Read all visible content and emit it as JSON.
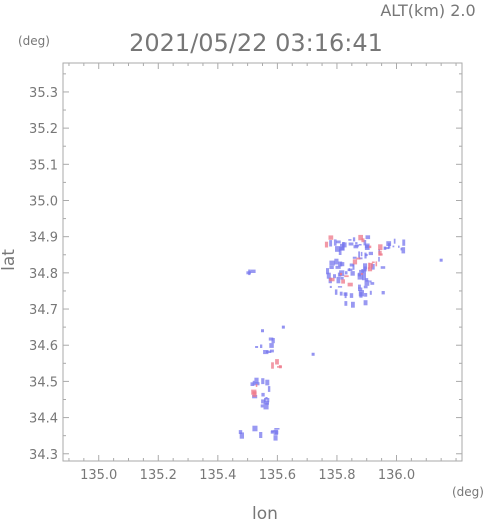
{
  "header": {
    "alt_label": "ALT(km) 2.0",
    "datetime": "2021/05/22 03:16:41"
  },
  "chart_data": {
    "type": "scatter",
    "xlabel": "lon",
    "ylabel": "lat",
    "x_unit": "(deg)",
    "y_unit": "(deg)",
    "xlim": [
      134.88,
      136.22
    ],
    "ylim": [
      34.28,
      35.38
    ],
    "x_ticks": [
      135.0,
      135.2,
      135.4,
      135.6,
      135.8,
      136.0
    ],
    "x_tick_labels": [
      "135.0",
      "135.2",
      "135.4",
      "135.6",
      "135.8",
      "136.0"
    ],
    "y_ticks": [
      34.3,
      34.4,
      34.5,
      34.6,
      34.7,
      34.8,
      34.9,
      35.0,
      35.1,
      35.2,
      35.3
    ],
    "y_tick_labels": [
      "34.3",
      "34.4",
      "34.5",
      "34.6",
      "34.7",
      "34.8",
      "34.9",
      "35.0",
      "35.1",
      "35.2",
      "35.3"
    ],
    "grid": false,
    "colors": {
      "blue": "#7777ee",
      "red": "#ee7788",
      "axis": "#aaaaaa"
    },
    "clusters": [
      {
        "lon": [
          135.76,
          135.96
        ],
        "lat": [
          34.74,
          34.9
        ],
        "color": "blue",
        "n": 70
      },
      {
        "lon": [
          135.76,
          135.95
        ],
        "lat": [
          34.76,
          34.9
        ],
        "color": "red",
        "n": 22
      },
      {
        "lon": [
          135.96,
          136.03
        ],
        "lat": [
          34.86,
          34.89
        ],
        "color": "blue",
        "n": 10
      },
      {
        "lon": [
          135.8,
          135.9
        ],
        "lat": [
          34.71,
          34.77
        ],
        "color": "blue",
        "n": 10
      },
      {
        "lon": [
          135.5,
          135.52
        ],
        "lat": [
          34.8,
          34.82
        ],
        "color": "blue",
        "n": 3
      },
      {
        "lon": [
          135.53,
          135.6
        ],
        "lat": [
          34.58,
          34.62
        ],
        "color": "blue",
        "n": 8
      },
      {
        "lon": [
          135.58,
          135.63
        ],
        "lat": [
          34.54,
          34.57
        ],
        "color": "red",
        "n": 4
      },
      {
        "lon": [
          135.51,
          135.58
        ],
        "lat": [
          34.43,
          34.51
        ],
        "color": "blue",
        "n": 16
      },
      {
        "lon": [
          135.51,
          135.55
        ],
        "lat": [
          34.46,
          34.5
        ],
        "color": "red",
        "n": 3
      },
      {
        "lon": [
          135.45,
          135.6
        ],
        "lat": [
          34.34,
          34.37
        ],
        "color": "blue",
        "n": 10
      }
    ],
    "points": [
      {
        "lon": 136.15,
        "lat": 34.835,
        "color": "blue"
      },
      {
        "lon": 135.72,
        "lat": 34.575,
        "color": "blue"
      },
      {
        "lon": 135.62,
        "lat": 34.65,
        "color": "blue"
      },
      {
        "lon": 135.55,
        "lat": 34.64,
        "color": "blue"
      }
    ]
  }
}
